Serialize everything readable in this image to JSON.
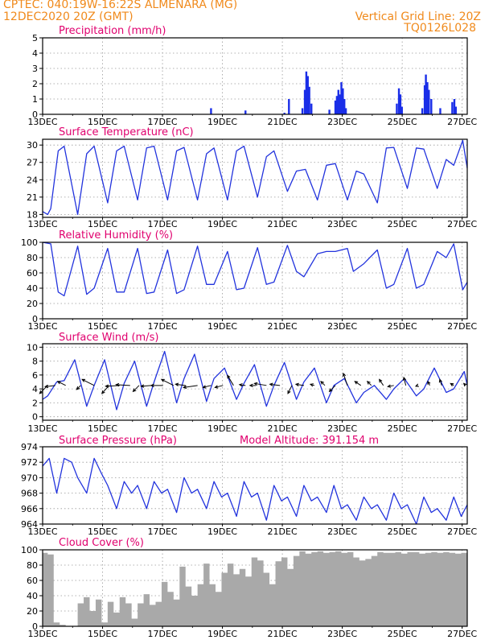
{
  "header": {
    "line1_left": "CPTEC:   040:19W-16:22S   ALMENARA (MG)",
    "line2_left": "12DEC2020 20Z (GMT)",
    "line1_right": "Vertical Grid Line: 20Z",
    "line2_right": "TQ0126L028"
  },
  "colors": {
    "header": "#f08a1c",
    "panel_title": "#e0006e",
    "series_line": "#2233dd",
    "precip_bar": "#1a2ee8",
    "cloud_fill": "#a9a9a9",
    "wind_arrow": "#000000",
    "grid": "#999999"
  },
  "chart_data": [
    {
      "id": "precipitation",
      "type": "bar",
      "title": "Precipitation (mm/h)",
      "ylim": [
        0,
        5
      ],
      "yticks": [
        0,
        1,
        2,
        3,
        4,
        5
      ],
      "xlim": [
        12.83,
        27.0
      ],
      "xticks": [
        "13DEC",
        "15DEC",
        "17DEC",
        "19DEC",
        "21DEC",
        "23DEC",
        "25DEC",
        "27DEC"
      ],
      "grid": true,
      "points": [
        [
          18.45,
          0.4
        ],
        [
          19.6,
          0.25
        ],
        [
          20.9,
          0.1
        ],
        [
          21.05,
          1.0
        ],
        [
          21.5,
          0.4
        ],
        [
          21.58,
          1.6
        ],
        [
          21.63,
          2.8
        ],
        [
          21.68,
          2.5
        ],
        [
          21.73,
          1.8
        ],
        [
          21.8,
          0.7
        ],
        [
          22.4,
          0.3
        ],
        [
          22.6,
          0.9
        ],
        [
          22.65,
          1.2
        ],
        [
          22.7,
          1.6
        ],
        [
          22.75,
          1.3
        ],
        [
          22.8,
          2.1
        ],
        [
          22.85,
          1.7
        ],
        [
          22.9,
          1.0
        ],
        [
          22.95,
          0.4
        ],
        [
          24.65,
          0.7
        ],
        [
          24.72,
          1.7
        ],
        [
          24.77,
          1.3
        ],
        [
          24.82,
          0.5
        ],
        [
          25.5,
          0.4
        ],
        [
          25.58,
          1.9
        ],
        [
          25.62,
          2.6
        ],
        [
          25.67,
          2.1
        ],
        [
          25.72,
          1.6
        ],
        [
          25.8,
          1.0
        ],
        [
          26.1,
          0.4
        ],
        [
          26.5,
          0.8
        ],
        [
          26.57,
          1.0
        ],
        [
          26.62,
          0.5
        ]
      ]
    },
    {
      "id": "temperature",
      "type": "line",
      "title": "Surface Temperature (nC)",
      "ylim": [
        17.5,
        31
      ],
      "yticks": [
        18,
        21,
        24,
        27,
        30
      ],
      "xlim": [
        12.83,
        27.0
      ],
      "xticks": [
        "13DEC",
        "15DEC",
        "17DEC",
        "19DEC",
        "21DEC",
        "23DEC",
        "25DEC",
        "27DEC"
      ],
      "grid": true,
      "x": [
        12.83,
        13.0,
        13.1,
        13.35,
        13.55,
        14.0,
        14.3,
        14.55,
        15.0,
        15.3,
        15.55,
        16.0,
        16.3,
        16.55,
        17.0,
        17.3,
        17.55,
        18.0,
        18.3,
        18.55,
        19.0,
        19.3,
        19.55,
        20.0,
        20.3,
        20.55,
        21.0,
        21.3,
        21.6,
        22.0,
        22.3,
        22.6,
        23.0,
        23.3,
        23.55,
        24.0,
        24.3,
        24.55,
        25.0,
        25.3,
        25.55,
        26.0,
        26.3,
        26.55,
        26.85,
        27.0
      ],
      "y": [
        18.5,
        18.0,
        19.0,
        29.0,
        29.8,
        18.0,
        28.5,
        29.8,
        20.0,
        29.0,
        29.8,
        20.5,
        29.5,
        29.8,
        20.5,
        29.0,
        29.6,
        20.5,
        28.5,
        29.5,
        20.5,
        29.0,
        29.8,
        21.0,
        28.0,
        29.0,
        22.0,
        25.5,
        25.8,
        20.5,
        26.5,
        26.8,
        20.5,
        25.5,
        25.0,
        20.0,
        29.5,
        29.6,
        22.5,
        29.5,
        29.3,
        22.5,
        27.5,
        26.5,
        30.8,
        26.0
      ]
    },
    {
      "id": "humidity",
      "type": "line",
      "title": "Relative Humidity (%)",
      "ylim": [
        0,
        100
      ],
      "yticks": [
        0,
        20,
        40,
        60,
        80,
        100
      ],
      "xlim": [
        12.83,
        27.0
      ],
      "xticks": [
        "13DEC",
        "15DEC",
        "17DEC",
        "19DEC",
        "21DEC",
        "23DEC",
        "25DEC",
        "27DEC"
      ],
      "grid": true,
      "x": [
        12.83,
        13.1,
        13.35,
        13.55,
        14.0,
        14.3,
        14.55,
        15.0,
        15.3,
        15.55,
        16.0,
        16.3,
        16.55,
        17.0,
        17.3,
        17.55,
        18.0,
        18.3,
        18.55,
        19.0,
        19.3,
        19.55,
        20.0,
        20.3,
        20.55,
        21.0,
        21.3,
        21.55,
        22.0,
        22.3,
        22.6,
        23.0,
        23.2,
        23.55,
        24.0,
        24.3,
        24.55,
        25.0,
        25.3,
        25.55,
        26.0,
        26.3,
        26.55,
        26.85,
        27.0
      ],
      "y": [
        100,
        98,
        35,
        30,
        95,
        32,
        40,
        92,
        35,
        35,
        92,
        33,
        35,
        90,
        33,
        38,
        95,
        45,
        45,
        88,
        38,
        40,
        93,
        45,
        48,
        96,
        62,
        55,
        85,
        88,
        88,
        92,
        62,
        72,
        90,
        40,
        45,
        92,
        40,
        45,
        88,
        80,
        98,
        38,
        48
      ]
    },
    {
      "id": "wind",
      "type": "line",
      "title": "Surface Wind (m/s)",
      "ylim": [
        -0.5,
        10.5
      ],
      "yticks": [
        0,
        2,
        4,
        6,
        8,
        10
      ],
      "xlim": [
        12.83,
        27.0
      ],
      "xticks": [
        "13DEC",
        "15DEC",
        "17DEC",
        "19DEC",
        "21DEC",
        "23DEC",
        "25DEC",
        "27DEC"
      ],
      "grid": true,
      "x": [
        12.83,
        13.0,
        13.3,
        13.55,
        13.9,
        14.3,
        14.55,
        14.9,
        15.3,
        15.55,
        15.9,
        16.3,
        16.55,
        16.9,
        17.3,
        17.55,
        17.9,
        18.3,
        18.55,
        18.9,
        19.3,
        19.55,
        19.9,
        20.3,
        20.55,
        20.9,
        21.3,
        21.55,
        21.9,
        22.3,
        22.55,
        22.9,
        23.3,
        23.55,
        23.9,
        24.3,
        24.55,
        24.9,
        25.3,
        25.55,
        25.9,
        26.3,
        26.55,
        26.9,
        27.0
      ],
      "y": [
        2.5,
        3.0,
        5.0,
        5.2,
        8.2,
        1.5,
        4.5,
        8.2,
        1.0,
        4.8,
        8.0,
        1.5,
        5.0,
        9.4,
        2.0,
        5.5,
        9.0,
        2.2,
        5.5,
        7.0,
        2.5,
        4.8,
        7.5,
        1.5,
        4.5,
        7.8,
        2.5,
        5.0,
        7.0,
        2.0,
        4.5,
        5.5,
        2.0,
        3.5,
        4.5,
        2.5,
        4.0,
        5.5,
        3.0,
        4.0,
        7.0,
        3.5,
        4.0,
        6.5,
        4.5
      ],
      "arrows": [
        {
          "x": 13.0,
          "u": -2.0,
          "v": -2.0
        },
        {
          "x": 13.25,
          "u": -2.5,
          "v": -0.3
        },
        {
          "x": 13.6,
          "u": -2.0,
          "v": 1.0
        },
        {
          "x": 14.1,
          "u": -1.0,
          "v": -1.0
        },
        {
          "x": 14.55,
          "u": -3.0,
          "v": 1.5
        },
        {
          "x": 15.05,
          "u": -1.8,
          "v": -2.0
        },
        {
          "x": 15.4,
          "u": -3.5,
          "v": -0.2
        },
        {
          "x": 15.75,
          "u": -3.5,
          "v": 0.2
        },
        {
          "x": 16.05,
          "u": -1.5,
          "v": -1.5
        },
        {
          "x": 16.45,
          "u": -2.5,
          "v": -0.2
        },
        {
          "x": 16.85,
          "u": -3.0,
          "v": 0.0
        },
        {
          "x": 17.2,
          "u": -3.0,
          "v": 1.5
        },
        {
          "x": 17.6,
          "u": -2.5,
          "v": 0.3
        },
        {
          "x": 18.0,
          "u": -3.5,
          "v": -0.5
        },
        {
          "x": 18.45,
          "u": -2.0,
          "v": -0.5
        },
        {
          "x": 18.85,
          "u": -2.0,
          "v": -0.5
        },
        {
          "x": 19.2,
          "u": -1.5,
          "v": 2.5
        },
        {
          "x": 19.6,
          "u": -1.5,
          "v": 0.2
        },
        {
          "x": 19.95,
          "u": -1.5,
          "v": 0.0
        },
        {
          "x": 20.3,
          "u": -3.0,
          "v": 0.5
        },
        {
          "x": 20.75,
          "u": -2.5,
          "v": 0.3
        },
        {
          "x": 21.15,
          "u": -1.0,
          "v": -2.0
        },
        {
          "x": 21.55,
          "u": -2.0,
          "v": 0.3
        },
        {
          "x": 21.9,
          "u": -1.0,
          "v": 0.3
        },
        {
          "x": 22.25,
          "u": -1.0,
          "v": 1.0
        },
        {
          "x": 22.6,
          "u": -1.5,
          "v": -1.5
        },
        {
          "x": 23.0,
          "u": -1.0,
          "v": 3.0
        },
        {
          "x": 23.45,
          "u": -1.5,
          "v": 1.0
        },
        {
          "x": 23.8,
          "u": -1.0,
          "v": 1.0
        },
        {
          "x": 24.2,
          "u": -1.0,
          "v": 1.5
        },
        {
          "x": 24.55,
          "u": -1.5,
          "v": -0.3
        },
        {
          "x": 24.95,
          "u": -0.5,
          "v": 2.0
        },
        {
          "x": 25.35,
          "u": -0.5,
          "v": -0.2
        },
        {
          "x": 25.75,
          "u": -0.5,
          "v": 1.0
        },
        {
          "x": 26.15,
          "u": -0.5,
          "v": 1.5
        },
        {
          "x": 26.55,
          "u": -0.8,
          "v": 0.5
        },
        {
          "x": 26.95,
          "u": -0.5,
          "v": 0.5
        }
      ]
    },
    {
      "id": "pressure",
      "type": "line",
      "title": "Surface Pressure (hPa)",
      "annotation": "Model Altitude: 391.154 m",
      "ylim": [
        964,
        974
      ],
      "yticks": [
        964,
        966,
        968,
        970,
        972,
        974
      ],
      "xlim": [
        12.83,
        27.0
      ],
      "xticks": [
        "13DEC",
        "15DEC",
        "17DEC",
        "19DEC",
        "21DEC",
        "23DEC",
        "25DEC",
        "27DEC"
      ],
      "grid": true,
      "x": [
        12.83,
        13.05,
        13.3,
        13.55,
        13.8,
        14.0,
        14.3,
        14.55,
        14.8,
        15.0,
        15.3,
        15.55,
        15.8,
        16.0,
        16.3,
        16.55,
        16.8,
        17.0,
        17.3,
        17.55,
        17.8,
        18.0,
        18.3,
        18.55,
        18.8,
        19.0,
        19.3,
        19.55,
        19.8,
        20.0,
        20.3,
        20.55,
        20.8,
        21.0,
        21.3,
        21.55,
        21.8,
        22.0,
        22.3,
        22.55,
        22.8,
        23.0,
        23.3,
        23.55,
        23.8,
        24.0,
        24.3,
        24.55,
        24.8,
        25.0,
        25.3,
        25.55,
        25.8,
        26.0,
        26.3,
        26.55,
        26.8,
        27.0
      ],
      "y": [
        971.5,
        972.5,
        968.0,
        972.5,
        972.0,
        970.0,
        968.0,
        972.5,
        970.5,
        969.0,
        966.0,
        969.5,
        968.0,
        969.0,
        966.0,
        969.5,
        968.0,
        968.5,
        965.5,
        970.0,
        968.0,
        968.5,
        966.0,
        969.5,
        967.5,
        968.0,
        965.0,
        969.5,
        967.5,
        968.0,
        964.5,
        969.0,
        967.0,
        967.5,
        965.0,
        969.0,
        967.0,
        967.5,
        965.5,
        969.0,
        966.0,
        966.5,
        964.5,
        967.5,
        966.0,
        966.5,
        964.5,
        968.0,
        966.0,
        966.5,
        964.0,
        967.5,
        965.5,
        966.0,
        964.5,
        967.5,
        965.0,
        966.5
      ]
    },
    {
      "id": "cloud",
      "type": "area",
      "title": "Cloud Cover (%)",
      "ylim": [
        0,
        100
      ],
      "yticks": [
        0,
        20,
        40,
        60,
        80,
        100
      ],
      "xlim": [
        12.83,
        27.0
      ],
      "xticks": [
        "13DEC",
        "15DEC",
        "17DEC",
        "19DEC",
        "21DEC",
        "23DEC",
        "25DEC",
        "27DEC"
      ],
      "grid": true,
      "x": [
        12.83,
        13.0,
        13.2,
        13.4,
        13.6,
        13.8,
        14.0,
        14.2,
        14.4,
        14.6,
        14.8,
        15.0,
        15.2,
        15.4,
        15.6,
        15.8,
        16.0,
        16.2,
        16.4,
        16.6,
        16.8,
        17.0,
        17.2,
        17.4,
        17.6,
        17.8,
        18.0,
        18.2,
        18.4,
        18.6,
        18.8,
        19.0,
        19.2,
        19.4,
        19.6,
        19.8,
        20.0,
        20.2,
        20.4,
        20.6,
        20.8,
        21.0,
        21.2,
        21.4,
        21.6,
        21.8,
        22.0,
        22.2,
        22.4,
        22.6,
        22.8,
        23.0,
        23.2,
        23.4,
        23.6,
        23.8,
        24.0,
        24.2,
        24.4,
        24.6,
        24.8,
        25.0,
        25.2,
        25.4,
        25.6,
        25.8,
        26.0,
        26.2,
        26.4,
        26.6,
        26.8,
        27.0
      ],
      "y": [
        96,
        94,
        5,
        2,
        0,
        0,
        30,
        38,
        20,
        35,
        5,
        32,
        18,
        38,
        30,
        10,
        30,
        42,
        28,
        32,
        58,
        45,
        35,
        78,
        52,
        40,
        55,
        82,
        55,
        45,
        70,
        82,
        68,
        75,
        65,
        90,
        86,
        70,
        55,
        85,
        90,
        75,
        92,
        98,
        95,
        97,
        98,
        96,
        97,
        98,
        96,
        97,
        90,
        86,
        88,
        92,
        97,
        96,
        96,
        97,
        95,
        97,
        97,
        95,
        96,
        97,
        96,
        97,
        96,
        95,
        96,
        95
      ]
    }
  ]
}
